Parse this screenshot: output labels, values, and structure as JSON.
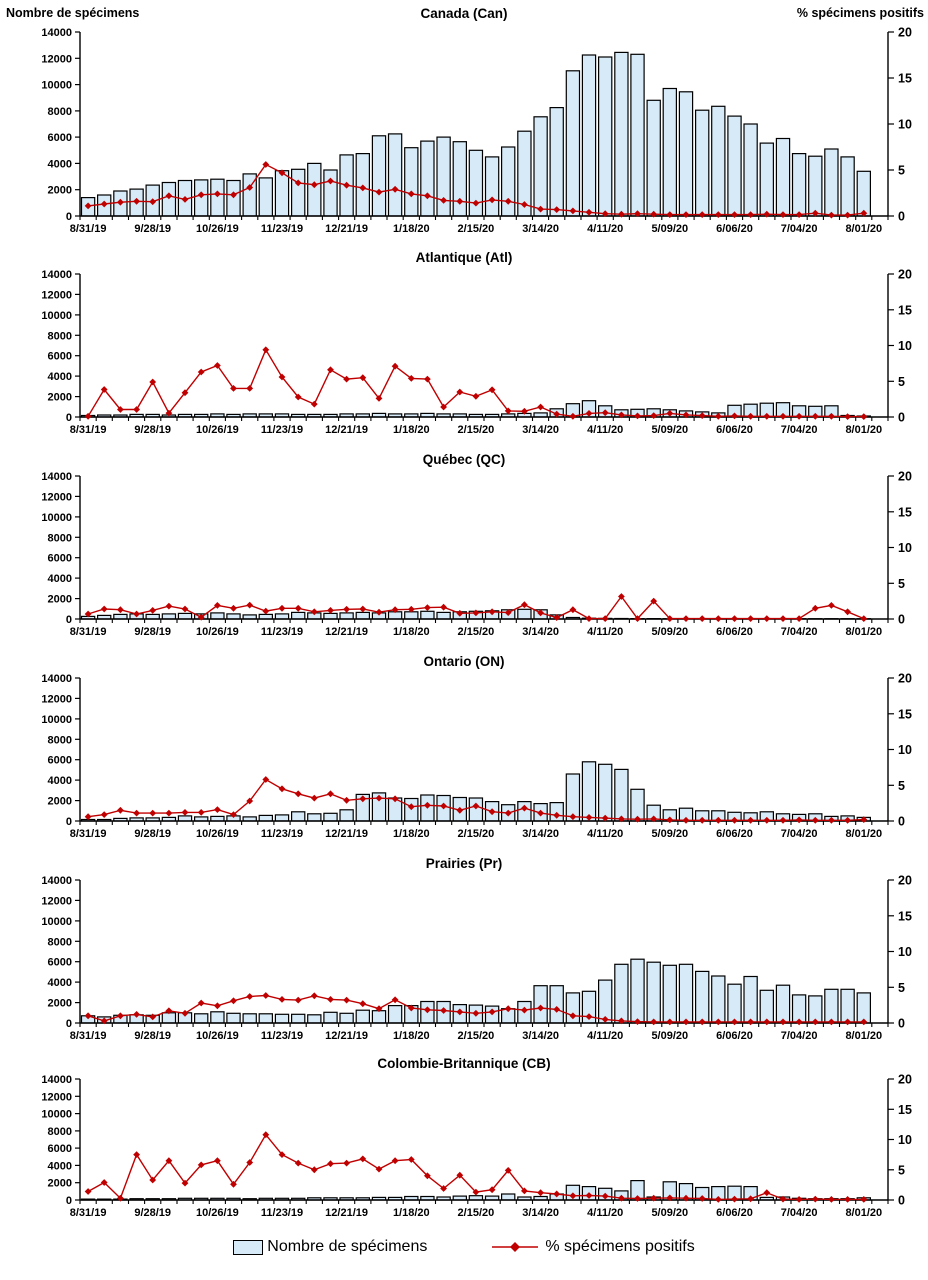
{
  "legend": {
    "specimens": "Nombre de spécimens",
    "positivity": "% spécimens positifs"
  },
  "colors": {
    "bar_fill": "#D6EAF8",
    "bar_border": "#000000",
    "line": "#C00000",
    "text": "#000000"
  },
  "chart_data": {
    "type": "bar",
    "subtype": "combo-bar-line-dual-axis",
    "y_left": {
      "title": "Nombre de spécimens",
      "min": 0,
      "max": 14000,
      "step": 2000,
      "ticks": [
        0,
        2000,
        4000,
        6000,
        8000,
        10000,
        12000,
        14000
      ]
    },
    "y_right": {
      "title": "% spécimens positifs",
      "min": 0,
      "max": 20,
      "step": 5,
      "ticks": [
        0,
        5,
        10,
        15,
        20
      ]
    },
    "x_weeks": [
      "8/31/19",
      "9/07/19",
      "9/14/19",
      "9/21/19",
      "9/28/19",
      "10/05/19",
      "10/12/19",
      "10/19/19",
      "10/26/19",
      "11/02/19",
      "11/09/19",
      "11/16/19",
      "11/23/19",
      "11/30/19",
      "12/07/19",
      "12/14/19",
      "12/21/19",
      "12/28/19",
      "1/04/20",
      "1/11/20",
      "1/18/20",
      "1/25/20",
      "2/01/20",
      "2/08/20",
      "2/15/20",
      "2/22/20",
      "2/29/20",
      "3/07/20",
      "3/14/20",
      "3/21/20",
      "3/28/20",
      "4/04/20",
      "4/11/20",
      "4/18/20",
      "4/25/20",
      "5/02/20",
      "5/09/20",
      "5/16/20",
      "5/23/20",
      "5/30/20",
      "6/06/20",
      "6/13/20",
      "6/20/20",
      "6/27/20",
      "7/04/20",
      "7/11/20",
      "7/18/20",
      "7/25/20",
      "8/01/20"
    ],
    "x_tick_label_indices": [
      0,
      4,
      8,
      12,
      16,
      20,
      24,
      28,
      32,
      36,
      40,
      44,
      48
    ],
    "x_tick_labels": [
      "8/31/19",
      "9/28/19",
      "10/26/19",
      "11/23/19",
      "12/21/19",
      "1/18/20",
      "2/15/20",
      "3/14/20",
      "4/11/20",
      "5/09/20",
      "6/06/20",
      "7/04/20",
      "8/01/20"
    ],
    "series_names": [
      "Nombre de spécimens",
      "% spécimens positifs"
    ],
    "charts": [
      {
        "title": "Canada (Can)",
        "specimens": [
          1400,
          1600,
          1900,
          2050,
          2350,
          2550,
          2700,
          2750,
          2800,
          2700,
          3200,
          2900,
          3450,
          3550,
          4000,
          3500,
          4650,
          4750,
          6100,
          6250,
          5200,
          5700,
          6000,
          5650,
          5000,
          4500,
          5250,
          6450,
          7550,
          8250,
          11050,
          12250,
          12100,
          12450,
          12300,
          8800,
          9700,
          9450,
          8050,
          8350,
          7600,
          7000,
          5550,
          5900,
          4750,
          4550,
          5100,
          4500,
          3400
        ],
        "percent": [
          1.1,
          1.3,
          1.5,
          1.6,
          1.55,
          2.2,
          1.8,
          2.3,
          2.4,
          2.3,
          3.1,
          5.6,
          4.7,
          3.6,
          3.4,
          3.8,
          3.35,
          3.05,
          2.6,
          2.9,
          2.4,
          2.2,
          1.7,
          1.6,
          1.4,
          1.75,
          1.6,
          1.25,
          0.75,
          0.7,
          0.55,
          0.4,
          0.25,
          0.2,
          0.25,
          0.2,
          0.15,
          0.15,
          0.15,
          0.15,
          0.15,
          0.15,
          0.2,
          0.15,
          0.15,
          0.3,
          0.1,
          0.1,
          0.3
        ]
      },
      {
        "title": "Atlantique (Atl)",
        "specimens": [
          150,
          200,
          200,
          250,
          250,
          200,
          250,
          250,
          300,
          250,
          300,
          300,
          300,
          250,
          250,
          250,
          300,
          300,
          350,
          300,
          300,
          350,
          300,
          300,
          250,
          250,
          300,
          350,
          400,
          800,
          1300,
          1600,
          1100,
          700,
          750,
          800,
          700,
          600,
          500,
          400,
          1150,
          1250,
          1350,
          1400,
          1100,
          1050,
          1100,
          150,
          100
        ],
        "percent": [
          0.1,
          3.85,
          1.05,
          1.05,
          4.9,
          0.55,
          3.4,
          6.3,
          7.2,
          4.0,
          4.0,
          9.4,
          5.6,
          2.8,
          1.8,
          6.6,
          5.3,
          5.5,
          2.6,
          7.1,
          5.4,
          5.3,
          1.4,
          3.5,
          2.9,
          3.8,
          0.85,
          0.8,
          1.4,
          0.4,
          0.1,
          0.5,
          0.6,
          0.3,
          0.15,
          0.2,
          0.5,
          0.3,
          0.2,
          0.1,
          0.15,
          0.1,
          0.1,
          0.1,
          0.1,
          0.1,
          0.1,
          0.05,
          0.05
        ]
      },
      {
        "title": "Québec (QC)",
        "specimens": [
          250,
          350,
          450,
          500,
          450,
          500,
          550,
          500,
          600,
          500,
          400,
          450,
          500,
          650,
          600,
          550,
          600,
          650,
          600,
          700,
          700,
          750,
          650,
          700,
          750,
          800,
          900,
          950,
          900,
          400,
          150,
          80,
          60,
          50,
          40,
          40,
          30,
          30,
          30,
          30,
          30,
          30,
          30,
          30,
          30,
          30,
          30,
          30,
          30
        ],
        "percent": [
          0.7,
          1.4,
          1.3,
          0.7,
          1.2,
          1.8,
          1.4,
          0.25,
          1.9,
          1.5,
          1.95,
          1.1,
          1.5,
          1.5,
          1.0,
          1.2,
          1.35,
          1.4,
          0.95,
          1.3,
          1.35,
          1.6,
          1.65,
          0.8,
          0.85,
          1.0,
          0.9,
          2.0,
          0.85,
          0.2,
          1.3,
          0.05,
          0.05,
          3.15,
          0.05,
          2.5,
          0.05,
          0.05,
          0.05,
          0.05,
          0.05,
          0.05,
          0.05,
          0.05,
          0.05,
          1.5,
          1.9,
          1.0,
          0.05
        ]
      },
      {
        "title": "Ontario (ON)",
        "specimens": [
          150,
          150,
          250,
          300,
          300,
          350,
          500,
          400,
          450,
          500,
          400,
          550,
          600,
          900,
          700,
          750,
          1100,
          2600,
          2750,
          2250,
          2200,
          2550,
          2500,
          2300,
          2250,
          1900,
          1600,
          1900,
          1700,
          1800,
          4600,
          5800,
          5550,
          5050,
          3100,
          1550,
          1100,
          1250,
          1000,
          1000,
          850,
          800,
          900,
          700,
          650,
          700,
          450,
          500,
          350
        ],
        "percent": [
          0.6,
          0.9,
          1.5,
          1.1,
          1.1,
          1.1,
          1.2,
          1.2,
          1.6,
          0.9,
          2.8,
          5.8,
          4.5,
          3.8,
          3.2,
          3.8,
          2.9,
          3.1,
          3.2,
          3.1,
          2.0,
          2.2,
          2.1,
          1.5,
          2.1,
          1.3,
          1.1,
          1.8,
          1.1,
          0.8,
          0.6,
          0.5,
          0.4,
          0.3,
          0.25,
          0.3,
          0.15,
          0.1,
          0.1,
          0.1,
          0.1,
          0.1,
          0.1,
          0.1,
          0.15,
          0.1,
          0.1,
          0.1,
          0.2
        ]
      },
      {
        "title": "Prairies (Pr)",
        "specimens": [
          700,
          600,
          750,
          800,
          750,
          1000,
          1000,
          900,
          1100,
          950,
          900,
          900,
          850,
          850,
          800,
          1050,
          950,
          1250,
          1200,
          1700,
          1700,
          2100,
          2100,
          1800,
          1750,
          1650,
          1400,
          2100,
          3650,
          3650,
          2950,
          3100,
          4200,
          5750,
          6250,
          5950,
          5650,
          5750,
          5050,
          4600,
          3800,
          4550,
          3200,
          3700,
          2750,
          2650,
          3300,
          3300,
          2950
        ],
        "percent": [
          1.0,
          0.3,
          1.0,
          1.2,
          0.85,
          1.7,
          1.35,
          2.8,
          2.4,
          3.1,
          3.7,
          3.85,
          3.3,
          3.2,
          3.8,
          3.3,
          3.2,
          2.7,
          2.0,
          3.25,
          2.1,
          1.85,
          1.75,
          1.55,
          1.35,
          1.55,
          2.0,
          1.8,
          2.1,
          1.9,
          1.0,
          0.9,
          0.5,
          0.3,
          0.2,
          0.15,
          0.15,
          0.15,
          0.15,
          0.15,
          0.15,
          0.15,
          0.15,
          0.15,
          0.15,
          0.15,
          0.15,
          0.15,
          0.15
        ]
      },
      {
        "title": "Colombie-Britannique (CB)",
        "specimens": [
          100,
          100,
          100,
          150,
          150,
          150,
          200,
          200,
          200,
          200,
          150,
          200,
          200,
          200,
          250,
          250,
          250,
          250,
          300,
          300,
          400,
          400,
          350,
          450,
          500,
          450,
          700,
          350,
          400,
          700,
          1700,
          1550,
          1350,
          1050,
          2250,
          350,
          2100,
          1900,
          1450,
          1550,
          1600,
          1550,
          300,
          350,
          200,
          150,
          150,
          150,
          250
        ],
        "percent": [
          1.4,
          2.9,
          0.3,
          7.5,
          3.3,
          6.5,
          2.8,
          5.8,
          6.5,
          2.6,
          6.2,
          10.8,
          7.5,
          6.1,
          5.0,
          6.0,
          6.1,
          6.8,
          5.1,
          6.5,
          6.7,
          4.0,
          1.9,
          4.1,
          1.3,
          1.7,
          4.9,
          1.5,
          1.2,
          1.0,
          0.7,
          0.75,
          0.65,
          0.3,
          0.25,
          0.3,
          0.35,
          0.3,
          0.25,
          0.1,
          0.15,
          0.2,
          1.2,
          0.15,
          0.1,
          0.15,
          0.1,
          0.1,
          0.1
        ]
      }
    ]
  }
}
